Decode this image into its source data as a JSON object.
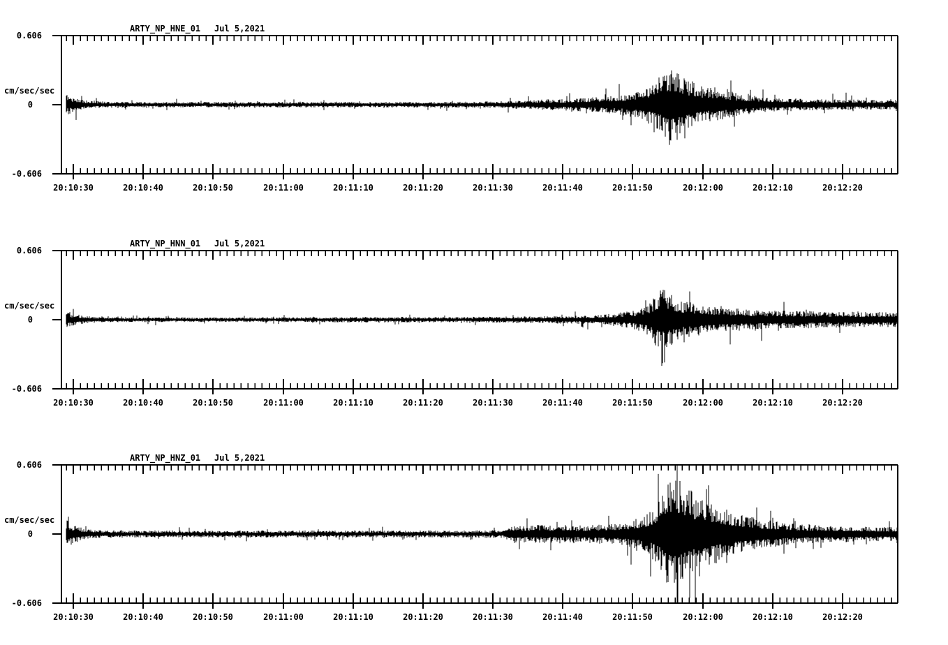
{
  "colors": {
    "background": "#ffffff",
    "trace": "#000000",
    "axis": "#000000",
    "text": "#000000"
  },
  "panels": [
    {
      "station": "ARTY_NP_HNE_01",
      "date": "Jul 5,2021",
      "y_axis": {
        "top": "0.606",
        "unit": "cm/sec/sec",
        "zero": "0",
        "bottom": "-0.606"
      }
    },
    {
      "station": "ARTY_NP_HNN_01",
      "date": "Jul 5,2021",
      "y_axis": {
        "top": "0.606",
        "unit": "cm/sec/sec",
        "zero": "0",
        "bottom": "-0.606"
      }
    },
    {
      "station": "ARTY_NP_HNZ_01",
      "date": "Jul 5,2021",
      "y_axis": {
        "top": "0.606",
        "unit": "cm/sec/sec",
        "zero": "0",
        "bottom": "-0.606"
      }
    }
  ],
  "x_axis": {
    "tick_labels": [
      "20:10:30",
      "20:10:40",
      "20:10:50",
      "20:11:00",
      "20:11:10",
      "20:11:20",
      "20:11:30",
      "20:11:40",
      "20:11:50",
      "20:12:00",
      "20:12:10",
      "20:12:20"
    ],
    "minor_tick_interval_sec": 1,
    "major_tick_interval_sec": 10
  },
  "chart_data": [
    {
      "type": "line",
      "subtype": "seismogram",
      "title": "ARTY_NP_HNE_01  Jul 5,2021",
      "station": "ARTY_NP_HNE_01",
      "channel": "HNE",
      "date": "Jul 5,2021",
      "xlabel": "",
      "ylabel": "cm/sec/sec",
      "ylim": [
        -0.606,
        0.606
      ],
      "x_start": "20:10:28",
      "x_end": "20:12:28",
      "x_tick_labels": [
        "20:10:30",
        "20:10:40",
        "20:10:50",
        "20:11:00",
        "20:11:10",
        "20:11:20",
        "20:11:30",
        "20:11:40",
        "20:11:50",
        "20:12:00",
        "20:12:10",
        "20:12:20"
      ],
      "event_peak_time": "20:11:56",
      "envelope": {
        "t_sec_after_20_10_00": [
          28.8,
          29.5,
          30.5,
          32,
          34,
          40,
          55,
          70,
          80,
          88,
          92,
          94,
          97,
          100,
          103,
          105,
          107,
          109,
          111,
          112.5,
          114,
          115.5,
          116.5,
          117.5,
          118.8,
          120,
          121,
          122,
          123.5,
          125,
          127,
          129,
          131.5,
          134,
          137,
          140,
          144,
          148
        ],
        "peak_amplitude": [
          0.098,
          0.08,
          0.055,
          0.037,
          0.028,
          0.024,
          0.024,
          0.024,
          0.024,
          0.028,
          0.031,
          0.04,
          0.046,
          0.049,
          0.061,
          0.067,
          0.08,
          0.098,
          0.135,
          0.171,
          0.245,
          0.337,
          0.306,
          0.245,
          0.196,
          0.165,
          0.147,
          0.159,
          0.122,
          0.098,
          0.08,
          0.067,
          0.061,
          0.055,
          0.049,
          0.046,
          0.043,
          0.043
        ]
      }
    },
    {
      "type": "line",
      "subtype": "seismogram",
      "title": "ARTY_NP_HNN_01  Jul 5,2021",
      "station": "ARTY_NP_HNN_01",
      "channel": "HNN",
      "date": "Jul 5,2021",
      "xlabel": "",
      "ylabel": "cm/sec/sec",
      "ylim": [
        -0.606,
        0.606
      ],
      "x_start": "20:10:28",
      "x_end": "20:12:28",
      "x_tick_labels": [
        "20:10:30",
        "20:10:40",
        "20:10:50",
        "20:11:00",
        "20:11:10",
        "20:11:20",
        "20:11:30",
        "20:11:40",
        "20:11:50",
        "20:12:00",
        "20:12:10",
        "20:12:20"
      ],
      "event_peak_time": "20:11:54",
      "envelope": {
        "t_sec_after_20_10_00": [
          28.8,
          29.5,
          30.5,
          32,
          34,
          40,
          55,
          70,
          85,
          92,
          96,
          100,
          104,
          106,
          108,
          110,
          111.5,
          112.8,
          113.8,
          114.8,
          116,
          117.2,
          118.5,
          120,
          122,
          124,
          126,
          128,
          131,
          134,
          137,
          140,
          144,
          148
        ],
        "peak_amplitude": [
          0.073,
          0.061,
          0.043,
          0.031,
          0.024,
          0.021,
          0.021,
          0.024,
          0.024,
          0.028,
          0.031,
          0.034,
          0.04,
          0.049,
          0.061,
          0.08,
          0.11,
          0.184,
          0.282,
          0.257,
          0.208,
          0.171,
          0.153,
          0.135,
          0.116,
          0.104,
          0.092,
          0.086,
          0.08,
          0.077,
          0.073,
          0.07,
          0.067,
          0.067
        ]
      }
    },
    {
      "type": "line",
      "subtype": "seismogram",
      "title": "ARTY_NP_HNZ_01  Jul 5,2021",
      "station": "ARTY_NP_HNZ_01",
      "channel": "HNZ",
      "date": "Jul 5,2021",
      "xlabel": "",
      "ylabel": "cm/sec/sec",
      "ylim": [
        -0.606,
        0.606
      ],
      "x_start": "20:10:28",
      "x_end": "20:12:28",
      "x_tick_labels": [
        "20:10:30",
        "20:10:40",
        "20:10:50",
        "20:11:00",
        "20:11:10",
        "20:11:20",
        "20:11:30",
        "20:11:40",
        "20:11:50",
        "20:12:00",
        "20:12:10",
        "20:12:20"
      ],
      "event_peak_time": "20:11:56",
      "envelope": {
        "t_sec_after_20_10_00": [
          28.8,
          29.5,
          30.5,
          32,
          34,
          40,
          55,
          70,
          85,
          91.5,
          92.3,
          93.5,
          95,
          96.5,
          98,
          100,
          102,
          104,
          106,
          108,
          110,
          111.5,
          113,
          114,
          115,
          115.8,
          116.8,
          117.8,
          118.8,
          119.8,
          120.8,
          122,
          123.5,
          125,
          126.5,
          128,
          130,
          132,
          134,
          136,
          139,
          142,
          145,
          148
        ],
        "peak_amplitude": [
          0.135,
          0.104,
          0.067,
          0.043,
          0.034,
          0.031,
          0.031,
          0.031,
          0.031,
          0.034,
          0.067,
          0.08,
          0.073,
          0.086,
          0.073,
          0.08,
          0.073,
          0.08,
          0.086,
          0.098,
          0.122,
          0.159,
          0.233,
          0.337,
          0.459,
          0.539,
          0.49,
          0.416,
          0.355,
          0.38,
          0.306,
          0.269,
          0.22,
          0.184,
          0.159,
          0.135,
          0.116,
          0.098,
          0.086,
          0.08,
          0.073,
          0.067,
          0.061,
          0.061
        ]
      }
    }
  ]
}
